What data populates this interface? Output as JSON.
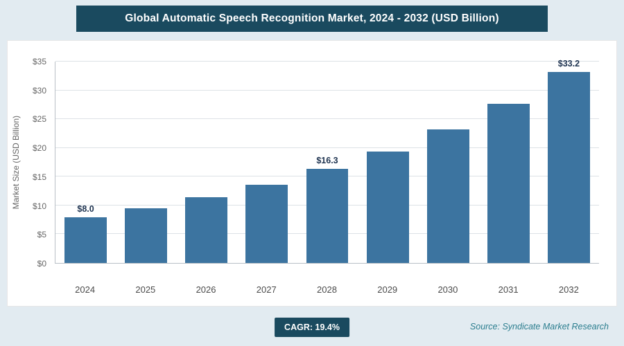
{
  "header": {
    "title": "Global Automatic Speech Recognition Market, 2024 - 2032 (USD Billion)"
  },
  "chart_data": {
    "type": "bar",
    "title": "Global Automatic Speech Recognition Market, 2024 - 2032 (USD Billion)",
    "categories": [
      "2024",
      "2025",
      "2026",
      "2027",
      "2028",
      "2029",
      "2030",
      "2031",
      "2032"
    ],
    "values": [
      8.0,
      9.5,
      11.4,
      13.6,
      16.3,
      19.4,
      23.2,
      27.7,
      33.2
    ],
    "value_labels": [
      "$8.0",
      "",
      "",
      "",
      "$16.3",
      "",
      "",
      "",
      "$33.2"
    ],
    "xlabel": "",
    "ylabel": "Market Size (USD Billion)",
    "ylim": [
      0,
      35
    ],
    "ytick_step": 5,
    "ytick_labels": [
      "$0",
      "$5",
      "$10",
      "$15",
      "$20",
      "$25",
      "$30",
      "$35"
    ],
    "bar_color": "#3c74a0",
    "grid": true,
    "legend": "none"
  },
  "footer": {
    "cagr_label": "CAGR: 19.4%",
    "source": "Source: Syndicate Market Research"
  }
}
